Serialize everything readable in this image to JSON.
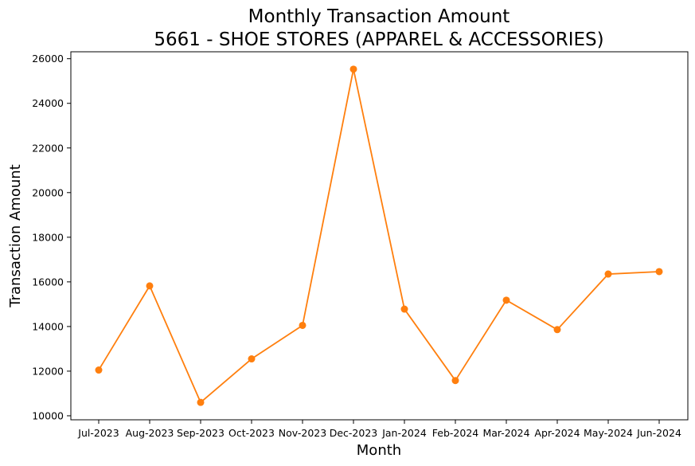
{
  "chart_data": {
    "type": "line",
    "title_line1": "Monthly Transaction Amount",
    "title_line2": "5661 - SHOE STORES (APPAREL & ACCESSORIES)",
    "xlabel": "Month",
    "ylabel": "Transaction Amount",
    "categories": [
      "Jul-2023",
      "Aug-2023",
      "Sep-2023",
      "Oct-2023",
      "Nov-2023",
      "Dec-2023",
      "Jan-2024",
      "Feb-2024",
      "Mar-2024",
      "Apr-2024",
      "May-2024",
      "Jun-2024"
    ],
    "series": [
      {
        "values": [
          12050,
          15820,
          10600,
          12550,
          14050,
          25530,
          14780,
          11580,
          15180,
          13860,
          16350,
          16460
        ],
        "color": "#ff7f0e"
      }
    ],
    "yticks": [
      10000,
      12000,
      14000,
      16000,
      18000,
      20000,
      22000,
      24000,
      26000
    ],
    "ylim": [
      9820,
      26310
    ],
    "grid": false,
    "legend": false
  }
}
